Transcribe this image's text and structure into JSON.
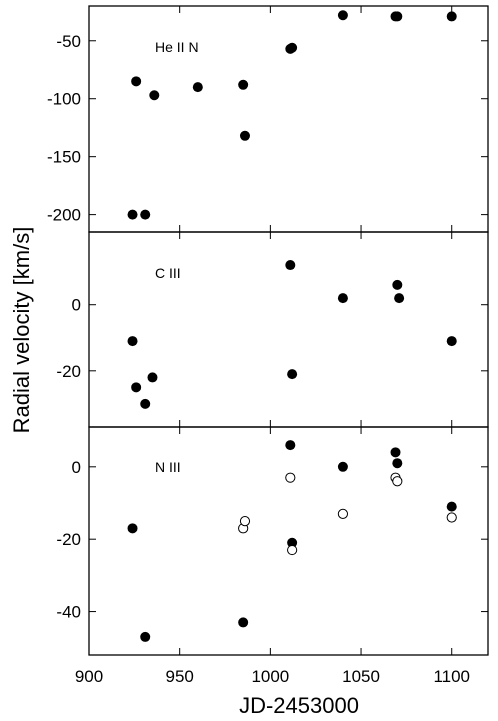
{
  "chart_data": {
    "type": "scatter",
    "xlabel": "JD-2453000",
    "ylabel": "Radial velocity [km/s]",
    "xlim": [
      900,
      1120
    ],
    "xticks": [
      900,
      950,
      1000,
      1050,
      1100
    ],
    "grid": false,
    "panels": [
      {
        "label": "He II N",
        "ylim": [
          -215,
          -20
        ],
        "yticks": [
          -200,
          -150,
          -100,
          -50
        ],
        "series": [
          {
            "marker": "filled",
            "points": [
              [
                924,
                -200
              ],
              [
                926,
                -85
              ],
              [
                931,
                -200
              ],
              [
                936,
                -97
              ],
              [
                960,
                -90
              ],
              [
                985,
                -88
              ],
              [
                986,
                -132
              ],
              [
                1011,
                -57
              ],
              [
                1012,
                -56
              ],
              [
                1040,
                -28
              ],
              [
                1069,
                -29
              ],
              [
                1070,
                -29
              ],
              [
                1100,
                -29
              ]
            ]
          }
        ]
      },
      {
        "label": "C III",
        "ylim": [
          -37,
          22
        ],
        "yticks": [
          -20,
          0
        ],
        "series": [
          {
            "marker": "filled",
            "points": [
              [
                924,
                -11
              ],
              [
                926,
                -25
              ],
              [
                931,
                -30
              ],
              [
                935,
                -22
              ],
              [
                1011,
                12
              ],
              [
                1012,
                -21
              ],
              [
                1040,
                2
              ],
              [
                1070,
                6
              ],
              [
                1071,
                2
              ],
              [
                1100,
                -11
              ]
            ]
          }
        ]
      },
      {
        "label": "N III",
        "ylim": [
          -52,
          11
        ],
        "yticks": [
          -40,
          -20,
          0
        ],
        "series": [
          {
            "marker": "filled",
            "points": [
              [
                924,
                -17
              ],
              [
                931,
                -47
              ],
              [
                985,
                -43
              ],
              [
                1011,
                6
              ],
              [
                1012,
                -21
              ],
              [
                1040,
                0
              ],
              [
                1069,
                4
              ],
              [
                1070,
                1
              ],
              [
                1100,
                -11
              ]
            ]
          },
          {
            "marker": "open",
            "points": [
              [
                985,
                -17
              ],
              [
                986,
                -15
              ],
              [
                1011,
                -3
              ],
              [
                1012,
                -23
              ],
              [
                1040,
                -13
              ],
              [
                1069,
                -3
              ],
              [
                1070,
                -4
              ],
              [
                1100,
                -14
              ]
            ]
          }
        ]
      }
    ]
  }
}
